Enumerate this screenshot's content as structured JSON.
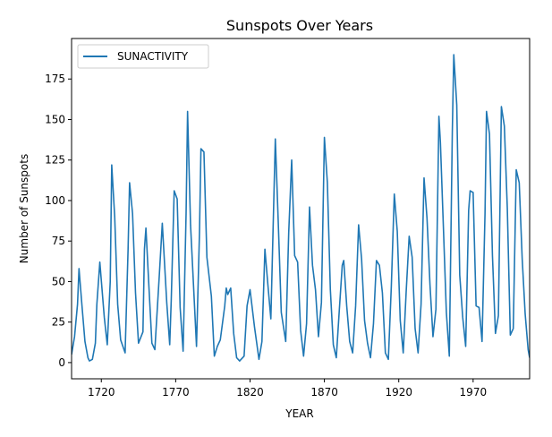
{
  "chart_data": {
    "type": "line",
    "title": "Sunspots Over Years",
    "xlabel": "YEAR",
    "ylabel": "Number of Sunspots",
    "xlim": [
      1700,
      2008
    ],
    "ylim": [
      -10,
      200
    ],
    "xticks": [
      1720,
      1770,
      1820,
      1870,
      1920,
      1970
    ],
    "yticks": [
      0,
      25,
      50,
      75,
      100,
      125,
      150,
      175
    ],
    "grid": false,
    "legend_position": "upper-left",
    "series_color": "#1f77b4",
    "series": [
      {
        "name": "SUNACTIVITY",
        "x": [
          1700,
          1702,
          1704,
          1705,
          1707,
          1709,
          1711,
          1712,
          1714,
          1716,
          1717,
          1719,
          1722,
          1724,
          1726,
          1727,
          1729,
          1731,
          1733,
          1736,
          1738,
          1739,
          1741,
          1743,
          1745,
          1748,
          1749,
          1750,
          1752,
          1754,
          1756,
          1759,
          1761,
          1764,
          1766,
          1767,
          1769,
          1771,
          1773,
          1775,
          1777,
          1778,
          1780,
          1784,
          1786,
          1787,
          1789,
          1791,
          1794,
          1796,
          1798,
          1800,
          1803,
          1804,
          1805,
          1807,
          1809,
          1811,
          1813,
          1816,
          1818,
          1820,
          1823,
          1826,
          1828,
          1830,
          1832,
          1834,
          1837,
          1839,
          1841,
          1844,
          1846,
          1848,
          1850,
          1852,
          1854,
          1856,
          1858,
          1860,
          1862,
          1864,
          1866,
          1868,
          1870,
          1872,
          1874,
          1876,
          1878,
          1880,
          1882,
          1883,
          1885,
          1887,
          1889,
          1891,
          1893,
          1895,
          1897,
          1899,
          1901,
          1903,
          1905,
          1907,
          1909,
          1911,
          1913,
          1915,
          1917,
          1919,
          1921,
          1923,
          1925,
          1927,
          1929,
          1931,
          1933,
          1935,
          1937,
          1939,
          1941,
          1943,
          1945,
          1947,
          1948,
          1950,
          1952,
          1954,
          1956,
          1957,
          1959,
          1961,
          1963,
          1965,
          1967,
          1968,
          1970,
          1972,
          1974,
          1976,
          1978,
          1979,
          1981,
          1983,
          1985,
          1987,
          1989,
          1991,
          1993,
          1995,
          1997,
          1999,
          2001,
          2003,
          2005,
          2007,
          2008
        ],
        "y": [
          5,
          16,
          36,
          58,
          35,
          13,
          3,
          1,
          2,
          12,
          36,
          62,
          28,
          11,
          50,
          122,
          90,
          36,
          14,
          6,
          70,
          111,
          92,
          43,
          12,
          19,
          70,
          83,
          47,
          12,
          8,
          54,
          86,
          37,
          11,
          38,
          106,
          101,
          34,
          7,
          92,
          155,
          85,
          10,
          80,
          132,
          130,
          65,
          41,
          4,
          10,
          14,
          35,
          46,
          42,
          46,
          18,
          3,
          1,
          4,
          35,
          45,
          22,
          2,
          13,
          70,
          48,
          27,
          138,
          86,
          31,
          13,
          80,
          125,
          66,
          62,
          20,
          4,
          24,
          96,
          60,
          45,
          16,
          37,
          139,
          111,
          45,
          11,
          3,
          32,
          60,
          63,
          35,
          13,
          6,
          35,
          85,
          64,
          26,
          12,
          3,
          24,
          63,
          60,
          43,
          6,
          2,
          47,
          104,
          81,
          26,
          6,
          44,
          78,
          65,
          21,
          6,
          36,
          114,
          89,
          48,
          16,
          33,
          152,
          136,
          84,
          31,
          4,
          142,
          190,
          159,
          54,
          28,
          10,
          94,
          106,
          105,
          35,
          34,
          13,
          92,
          155,
          141,
          66,
          18,
          29,
          158,
          146,
          95,
          17,
          21,
          119,
          111,
          64,
          30,
          8,
          3
        ]
      }
    ]
  }
}
